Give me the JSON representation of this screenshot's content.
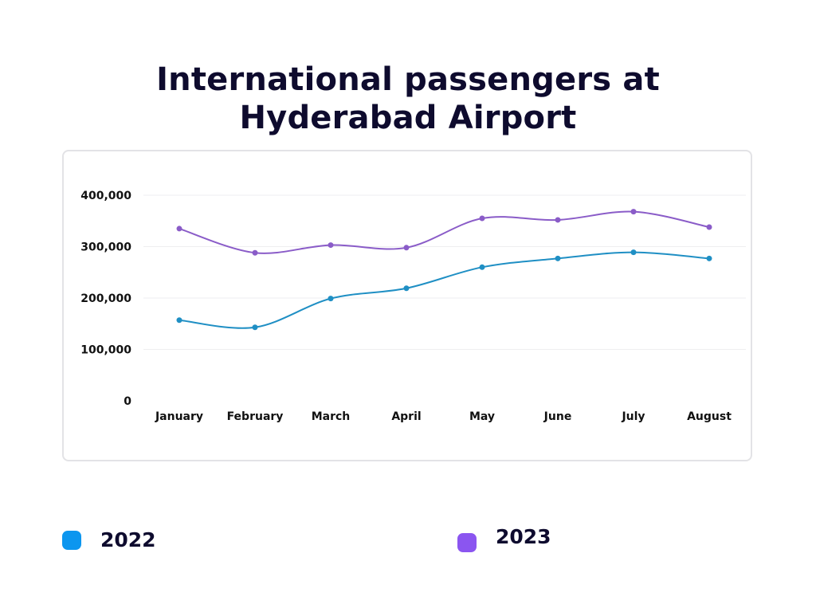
{
  "chart_data": {
    "type": "line",
    "title": "International passengers at Hyderabad Airport",
    "title_lines": [
      "International passengers at",
      "Hyderabad Airport"
    ],
    "xlabel": "",
    "ylabel": "",
    "categories": [
      "January",
      "February",
      "March",
      "April",
      "May",
      "June",
      "July",
      "August"
    ],
    "ylim": [
      0,
      400000
    ],
    "yticks": [
      0,
      100000,
      200000,
      300000,
      400000
    ],
    "ytick_labels": [
      "0",
      "100,000",
      "200,000",
      "300,000",
      "400,000"
    ],
    "grid": true,
    "legend_position": "bottom",
    "series": [
      {
        "name": "2022",
        "color": "#0c96ef",
        "line_color": "#1f8fc4",
        "values": [
          157000,
          143000,
          199000,
          219000,
          260000,
          277000,
          289000,
          277000
        ]
      },
      {
        "name": "2023",
        "color": "#8b55f0",
        "line_color": "#8a5cc8",
        "values": [
          335000,
          288000,
          303000,
          298000,
          355000,
          352000,
          368000,
          338000
        ]
      }
    ]
  }
}
